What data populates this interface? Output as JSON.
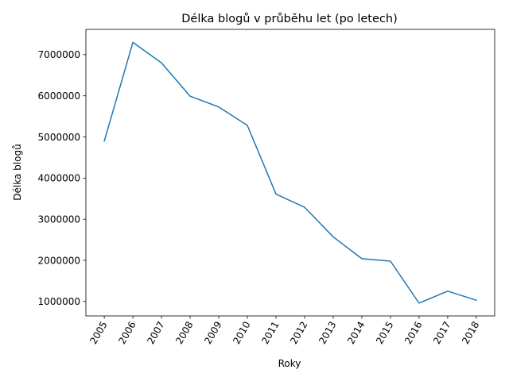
{
  "chart_data": {
    "type": "line",
    "title": "Délka blogů v průběhu let (po letech)",
    "xlabel": "Roky",
    "ylabel": "Délka blogů",
    "categories": [
      "2005",
      "2006",
      "2007",
      "2008",
      "2009",
      "2010",
      "2011",
      "2012",
      "2013",
      "2014",
      "2015",
      "2016",
      "2017",
      "2018"
    ],
    "series": [
      {
        "values": [
          4900000,
          7300000,
          6800000,
          5990000,
          5730000,
          5280000,
          3610000,
          3290000,
          2570000,
          2040000,
          1980000,
          960000,
          1250000,
          1030000
        ],
        "color": "#1f77b4"
      }
    ],
    "yticks": [
      1000000,
      2000000,
      3000000,
      4000000,
      5000000,
      6000000,
      7000000
    ],
    "ytick_labels": [
      "1000000",
      "2000000",
      "3000000",
      "4000000",
      "5000000",
      "6000000",
      "7000000"
    ],
    "ylim": [
      648500,
      7615500
    ],
    "grid": false,
    "legend": false
  }
}
